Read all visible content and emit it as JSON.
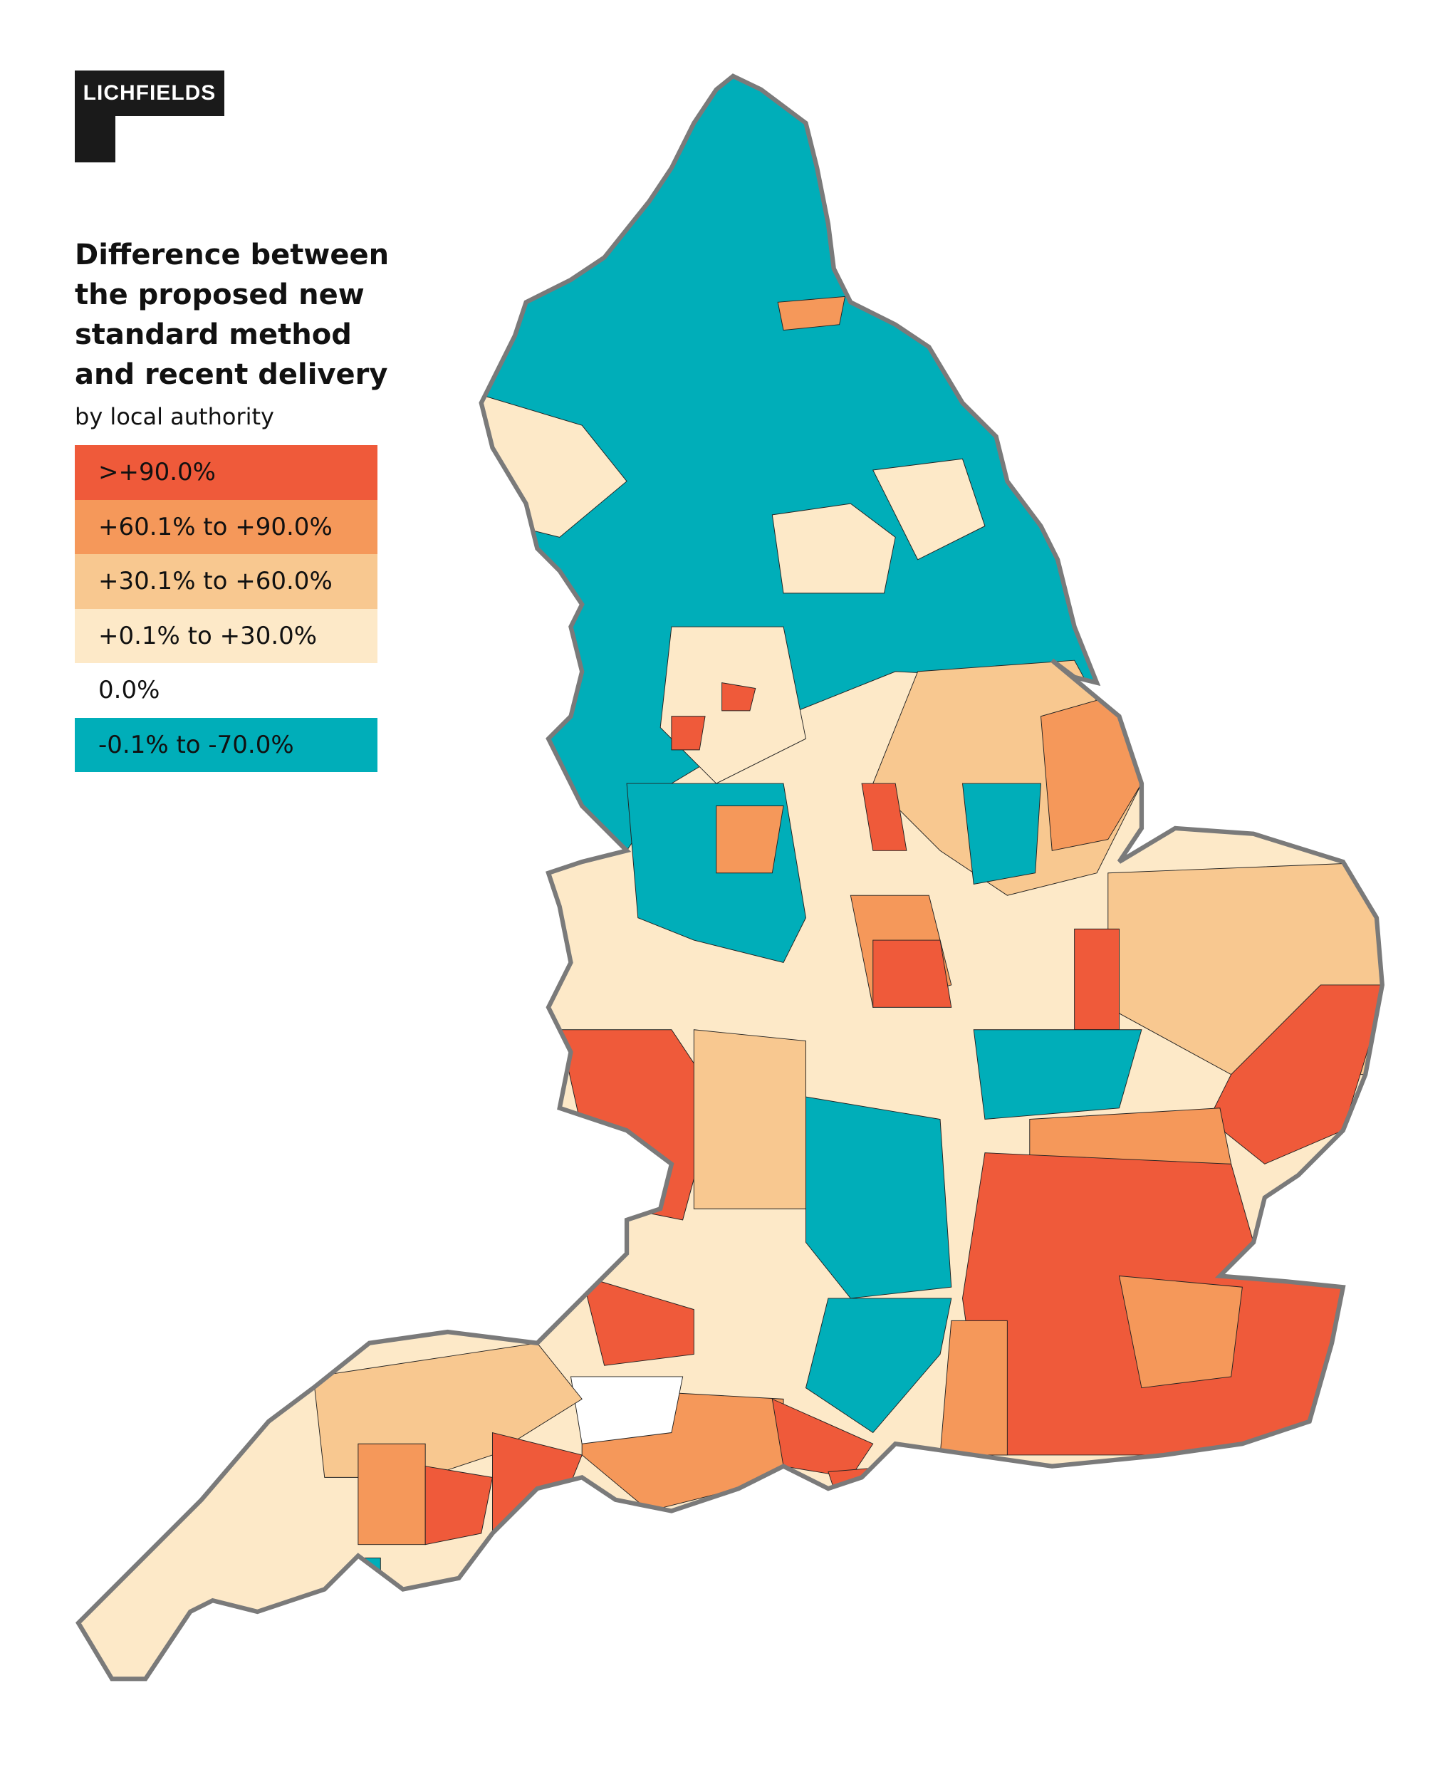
{
  "logo": "LICHFIELDS",
  "legend": {
    "title_lines": [
      "Difference between",
      "the proposed new",
      "standard method",
      "and recent delivery"
    ],
    "subtitle": "by local authority",
    "items": [
      {
        "label": ">+90.0%",
        "color": "#ef5a3a"
      },
      {
        "label": "+60.1% to +90.0%",
        "color": "#f5985a"
      },
      {
        "label": "+30.1% to +60.0%",
        "color": "#f8c890"
      },
      {
        "label": "+0.1% to +30.0%",
        "color": "#fde9c8"
      },
      {
        "label": "0.0%",
        "color": "#ffffff"
      },
      {
        "label": "-0.1% to -70.0%",
        "color": "#00aeb9"
      }
    ]
  }
}
